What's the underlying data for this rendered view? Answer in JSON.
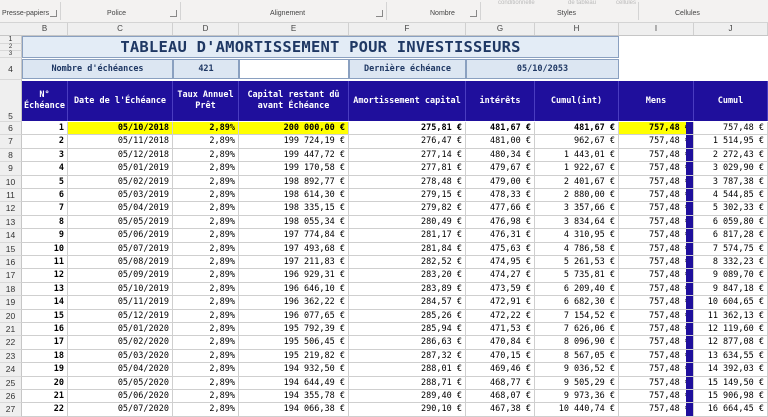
{
  "ribbon": {
    "groups": [
      "Presse-papiers",
      "Police",
      "Alignement",
      "Nombre",
      "Styles",
      "Cellules"
    ],
    "faint": [
      "conditionnelle",
      "de tableau",
      "cellules"
    ]
  },
  "columns": [
    "B",
    "C",
    "D",
    "E",
    "F",
    "G",
    "H",
    "I",
    "J"
  ],
  "row_numbers": [
    "1",
    "2",
    "3",
    "4",
    "5",
    "6",
    "7",
    "8",
    "9",
    "10",
    "11",
    "12",
    "13",
    "14",
    "15",
    "16",
    "17",
    "18",
    "19",
    "20",
    "21",
    "22",
    "23",
    "24",
    "25",
    "26",
    "27",
    "28"
  ],
  "title": "TABLEAU D'AMORTISSEMENT POUR INVESTISSEURS",
  "info": {
    "label_count": "Nombre d'échéances",
    "count": "421",
    "label_last": "Dernière échéance",
    "last": "05/10/2053"
  },
  "headers": {
    "num": "N° Échéance",
    "date": "Date de l'Échéance",
    "taux": "Taux Annuel Prêt",
    "capital": "Capital restant dû avant Échéance",
    "amort": "Amortissement capital",
    "interets": "intérêts",
    "cumul_int": "Cumul(int)",
    "mens": "Mens",
    "cumul": "Cumul"
  },
  "rows": [
    {
      "n": "1",
      "date": "05/10/2018",
      "taux": "2,89%",
      "cap": "200 000,00 €",
      "amort": "275,81 €",
      "int": "481,67 €",
      "cint": "481,67 €",
      "mens": "757,48 €",
      "cumul": "757,48 €"
    },
    {
      "n": "2",
      "date": "05/11/2018",
      "taux": "2,89%",
      "cap": "199 724,19 €",
      "amort": "276,47 €",
      "int": "481,00 €",
      "cint": "962,67 €",
      "mens": "757,48 €",
      "cumul": "1 514,95 €"
    },
    {
      "n": "3",
      "date": "05/12/2018",
      "taux": "2,89%",
      "cap": "199 447,72 €",
      "amort": "277,14 €",
      "int": "480,34 €",
      "cint": "1 443,01 €",
      "mens": "757,48 €",
      "cumul": "2 272,43 €"
    },
    {
      "n": "4",
      "date": "05/01/2019",
      "taux": "2,89%",
      "cap": "199 170,58 €",
      "amort": "277,81 €",
      "int": "479,67 €",
      "cint": "1 922,67 €",
      "mens": "757,48 €",
      "cumul": "3 029,90 €"
    },
    {
      "n": "5",
      "date": "05/02/2019",
      "taux": "2,89%",
      "cap": "198 892,77 €",
      "amort": "278,48 €",
      "int": "479,00 €",
      "cint": "2 401,67 €",
      "mens": "757,48 €",
      "cumul": "3 787,38 €"
    },
    {
      "n": "6",
      "date": "05/03/2019",
      "taux": "2,89%",
      "cap": "198 614,30 €",
      "amort": "279,15 €",
      "int": "478,33 €",
      "cint": "2 880,00 €",
      "mens": "757,48 €",
      "cumul": "4 544,85 €"
    },
    {
      "n": "7",
      "date": "05/04/2019",
      "taux": "2,89%",
      "cap": "198 335,15 €",
      "amort": "279,82 €",
      "int": "477,66 €",
      "cint": "3 357,66 €",
      "mens": "757,48 €",
      "cumul": "5 302,33 €"
    },
    {
      "n": "8",
      "date": "05/05/2019",
      "taux": "2,89%",
      "cap": "198 055,34 €",
      "amort": "280,49 €",
      "int": "476,98 €",
      "cint": "3 834,64 €",
      "mens": "757,48 €",
      "cumul": "6 059,80 €"
    },
    {
      "n": "9",
      "date": "05/06/2019",
      "taux": "2,89%",
      "cap": "197 774,84 €",
      "amort": "281,17 €",
      "int": "476,31 €",
      "cint": "4 310,95 €",
      "mens": "757,48 €",
      "cumul": "6 817,28 €"
    },
    {
      "n": "10",
      "date": "05/07/2019",
      "taux": "2,89%",
      "cap": "197 493,68 €",
      "amort": "281,84 €",
      "int": "475,63 €",
      "cint": "4 786,58 €",
      "mens": "757,48 €",
      "cumul": "7 574,75 €"
    },
    {
      "n": "11",
      "date": "05/08/2019",
      "taux": "2,89%",
      "cap": "197 211,83 €",
      "amort": "282,52 €",
      "int": "474,95 €",
      "cint": "5 261,53 €",
      "mens": "757,48 €",
      "cumul": "8 332,23 €"
    },
    {
      "n": "12",
      "date": "05/09/2019",
      "taux": "2,89%",
      "cap": "196 929,31 €",
      "amort": "283,20 €",
      "int": "474,27 €",
      "cint": "5 735,81 €",
      "mens": "757,48 €",
      "cumul": "9 089,70 €"
    },
    {
      "n": "13",
      "date": "05/10/2019",
      "taux": "2,89%",
      "cap": "196 646,10 €",
      "amort": "283,89 €",
      "int": "473,59 €",
      "cint": "6 209,40 €",
      "mens": "757,48 €",
      "cumul": "9 847,18 €"
    },
    {
      "n": "14",
      "date": "05/11/2019",
      "taux": "2,89%",
      "cap": "196 362,22 €",
      "amort": "284,57 €",
      "int": "472,91 €",
      "cint": "6 682,30 €",
      "mens": "757,48 €",
      "cumul": "10 604,65 €"
    },
    {
      "n": "15",
      "date": "05/12/2019",
      "taux": "2,89%",
      "cap": "196 077,65 €",
      "amort": "285,26 €",
      "int": "472,22 €",
      "cint": "7 154,52 €",
      "mens": "757,48 €",
      "cumul": "11 362,13 €"
    },
    {
      "n": "16",
      "date": "05/01/2020",
      "taux": "2,89%",
      "cap": "195 792,39 €",
      "amort": "285,94 €",
      "int": "471,53 €",
      "cint": "7 626,06 €",
      "mens": "757,48 €",
      "cumul": "12 119,60 €"
    },
    {
      "n": "17",
      "date": "05/02/2020",
      "taux": "2,89%",
      "cap": "195 506,45 €",
      "amort": "286,63 €",
      "int": "470,84 €",
      "cint": "8 096,90 €",
      "mens": "757,48 €",
      "cumul": "12 877,08 €"
    },
    {
      "n": "18",
      "date": "05/03/2020",
      "taux": "2,89%",
      "cap": "195 219,82 €",
      "amort": "287,32 €",
      "int": "470,15 €",
      "cint": "8 567,05 €",
      "mens": "757,48 €",
      "cumul": "13 634,55 €"
    },
    {
      "n": "19",
      "date": "05/04/2020",
      "taux": "2,89%",
      "cap": "194 932,50 €",
      "amort": "288,01 €",
      "int": "469,46 €",
      "cint": "9 036,52 €",
      "mens": "757,48 €",
      "cumul": "14 392,03 €"
    },
    {
      "n": "20",
      "date": "05/05/2020",
      "taux": "2,89%",
      "cap": "194 644,49 €",
      "amort": "288,71 €",
      "int": "468,77 €",
      "cint": "9 505,29 €",
      "mens": "757,48 €",
      "cumul": "15 149,50 €"
    },
    {
      "n": "21",
      "date": "05/06/2020",
      "taux": "2,89%",
      "cap": "194 355,78 €",
      "amort": "289,40 €",
      "int": "468,07 €",
      "cint": "9 973,36 €",
      "mens": "757,48 €",
      "cumul": "15 906,98 €"
    },
    {
      "n": "22",
      "date": "05/07/2020",
      "taux": "2,89%",
      "cap": "194 066,38 €",
      "amort": "290,10 €",
      "int": "467,38 €",
      "cint": "10 440,74 €",
      "mens": "757,48 €",
      "cumul": "16 664,45 €"
    }
  ]
}
